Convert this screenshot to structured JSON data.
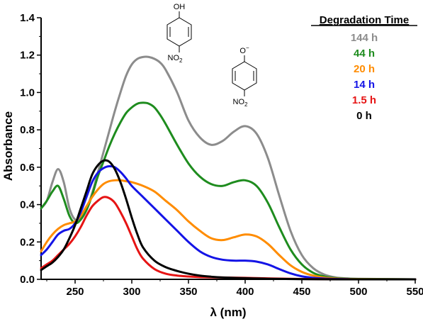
{
  "chart_data": {
    "type": "line",
    "xlabel": "λ (nm)",
    "ylabel": "Absorbance",
    "xlim": [
      220,
      550
    ],
    "ylim": [
      0,
      1.4
    ],
    "x_ticks": [
      250,
      300,
      350,
      400,
      450,
      500,
      550
    ],
    "y_ticks": [
      0.0,
      0.2,
      0.4,
      0.6,
      0.8,
      1.0,
      1.2,
      1.4
    ],
    "x_tick_labels": [
      "250",
      "300",
      "350",
      "400",
      "450",
      "500",
      "550"
    ],
    "y_tick_labels": [
      "0.0",
      "0.2",
      "0.4",
      "0.6",
      "0.8",
      "1.0",
      "1.2",
      "1.4"
    ],
    "grid": false,
    "legend": {
      "title": "Degradation Time",
      "placement": "top-right"
    },
    "series": [
      {
        "name": "144 h",
        "color": "#8c8c8c",
        "x": [
          220,
          225,
          230,
          235,
          240,
          245,
          250,
          255,
          260,
          265,
          270,
          275,
          280,
          285,
          290,
          295,
          300,
          305,
          310,
          315,
          320,
          325,
          330,
          340,
          350,
          360,
          370,
          380,
          390,
          400,
          410,
          420,
          430,
          440,
          450,
          460,
          470,
          480,
          490,
          500,
          550
        ],
        "y": [
          0.38,
          0.42,
          0.52,
          0.59,
          0.52,
          0.38,
          0.32,
          0.33,
          0.38,
          0.46,
          0.57,
          0.68,
          0.79,
          0.9,
          1.0,
          1.09,
          1.15,
          1.18,
          1.19,
          1.19,
          1.18,
          1.16,
          1.12,
          1.0,
          0.85,
          0.76,
          0.72,
          0.74,
          0.79,
          0.82,
          0.78,
          0.65,
          0.45,
          0.26,
          0.13,
          0.06,
          0.025,
          0.01,
          0.005,
          0.003,
          0.0
        ]
      },
      {
        "name": "44 h",
        "color": "#1e8c1e",
        "x": [
          220,
          225,
          230,
          235,
          240,
          245,
          250,
          255,
          260,
          265,
          270,
          275,
          280,
          285,
          290,
          295,
          300,
          305,
          310,
          315,
          320,
          325,
          330,
          340,
          350,
          360,
          370,
          380,
          390,
          400,
          410,
          420,
          430,
          440,
          450,
          460,
          470,
          480,
          490,
          500,
          550
        ],
        "y": [
          0.38,
          0.42,
          0.47,
          0.5,
          0.43,
          0.34,
          0.3,
          0.32,
          0.37,
          0.45,
          0.55,
          0.63,
          0.71,
          0.78,
          0.84,
          0.89,
          0.92,
          0.94,
          0.945,
          0.94,
          0.92,
          0.88,
          0.83,
          0.72,
          0.62,
          0.55,
          0.51,
          0.5,
          0.52,
          0.53,
          0.5,
          0.41,
          0.28,
          0.16,
          0.08,
          0.035,
          0.015,
          0.006,
          0.003,
          0.002,
          0.0
        ]
      },
      {
        "name": "20 h",
        "color": "#ff8c00",
        "x": [
          220,
          225,
          230,
          235,
          240,
          245,
          250,
          255,
          260,
          265,
          270,
          275,
          280,
          285,
          290,
          295,
          300,
          310,
          320,
          330,
          340,
          350,
          360,
          370,
          380,
          390,
          400,
          410,
          420,
          430,
          440,
          450,
          460,
          470,
          480,
          490,
          500,
          550
        ],
        "y": [
          0.15,
          0.2,
          0.24,
          0.27,
          0.29,
          0.3,
          0.31,
          0.34,
          0.39,
          0.44,
          0.48,
          0.51,
          0.525,
          0.53,
          0.53,
          0.525,
          0.52,
          0.5,
          0.47,
          0.42,
          0.37,
          0.31,
          0.26,
          0.22,
          0.21,
          0.225,
          0.24,
          0.23,
          0.19,
          0.13,
          0.075,
          0.04,
          0.02,
          0.009,
          0.004,
          0.002,
          0.001,
          0.0
        ]
      },
      {
        "name": "14 h",
        "color": "#1414e6",
        "x": [
          220,
          225,
          230,
          235,
          240,
          245,
          250,
          255,
          260,
          265,
          270,
          275,
          280,
          285,
          290,
          295,
          300,
          310,
          320,
          330,
          340,
          350,
          360,
          370,
          380,
          390,
          400,
          410,
          420,
          430,
          440,
          450,
          460,
          470,
          480,
          490,
          500,
          550
        ],
        "y": [
          0.13,
          0.16,
          0.2,
          0.24,
          0.26,
          0.27,
          0.3,
          0.36,
          0.44,
          0.52,
          0.57,
          0.595,
          0.605,
          0.6,
          0.575,
          0.54,
          0.5,
          0.44,
          0.38,
          0.32,
          0.26,
          0.2,
          0.15,
          0.12,
          0.105,
          0.1,
          0.1,
          0.095,
          0.08,
          0.055,
          0.032,
          0.016,
          0.008,
          0.004,
          0.002,
          0.001,
          0.0,
          0.0
        ]
      },
      {
        "name": "1.5 h",
        "color": "#e61414",
        "x": [
          220,
          225,
          230,
          235,
          240,
          245,
          250,
          255,
          260,
          265,
          270,
          275,
          280,
          285,
          290,
          295,
          300,
          305,
          310,
          320,
          330,
          340,
          350,
          360,
          380,
          400,
          420,
          450,
          500,
          550
        ],
        "y": [
          0.06,
          0.08,
          0.1,
          0.13,
          0.16,
          0.19,
          0.23,
          0.28,
          0.34,
          0.39,
          0.42,
          0.44,
          0.435,
          0.41,
          0.36,
          0.3,
          0.23,
          0.16,
          0.11,
          0.055,
          0.03,
          0.02,
          0.015,
          0.012,
          0.01,
          0.008,
          0.005,
          0.002,
          0.0,
          0.0
        ]
      },
      {
        "name": "0 h",
        "color": "#000000",
        "x": [
          220,
          225,
          230,
          235,
          240,
          245,
          250,
          255,
          260,
          265,
          270,
          275,
          280,
          285,
          290,
          295,
          300,
          305,
          310,
          320,
          330,
          340,
          350,
          360,
          370,
          380,
          400,
          420,
          450,
          500,
          550
        ],
        "y": [
          0.05,
          0.07,
          0.09,
          0.12,
          0.16,
          0.22,
          0.29,
          0.38,
          0.47,
          0.56,
          0.61,
          0.635,
          0.63,
          0.59,
          0.52,
          0.43,
          0.33,
          0.24,
          0.17,
          0.1,
          0.065,
          0.045,
          0.03,
          0.02,
          0.014,
          0.01,
          0.006,
          0.003,
          0.001,
          0.0,
          0.0
        ]
      }
    ]
  },
  "structures": [
    {
      "top_group": "OH",
      "bottom_group": "NO",
      "bottom_subscript": "2"
    },
    {
      "top_group": "O",
      "charge": "−",
      "bottom_group": "NO",
      "bottom_subscript": "2"
    }
  ]
}
